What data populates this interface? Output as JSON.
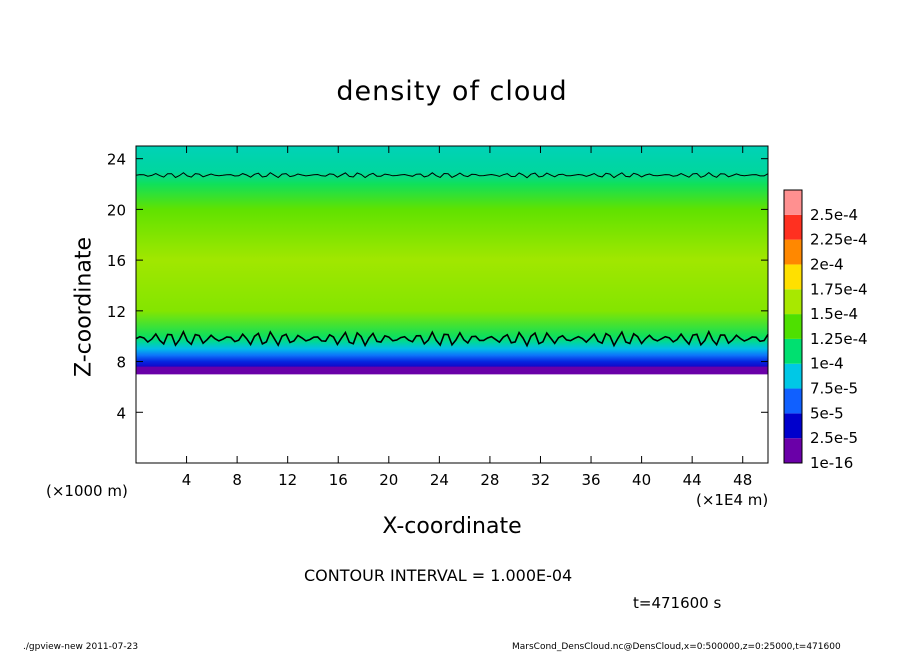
{
  "title": "density of cloud",
  "chart_data": {
    "type": "heatmap",
    "title": "density of cloud",
    "xlabel": "X-coordinate",
    "ylabel": "Z-coordinate",
    "x_unit": "(×1E4 m)",
    "y_unit": "(×1000 m)",
    "xlim": [
      0,
      50
    ],
    "ylim": [
      0,
      25
    ],
    "xticks": [
      "4",
      "8",
      "12",
      "16",
      "20",
      "24",
      "28",
      "32",
      "36",
      "40",
      "44",
      "48"
    ],
    "yticks": [
      "4",
      "8",
      "12",
      "16",
      "20",
      "24"
    ],
    "colorbar_labels": [
      "1e-16",
      "2.5e-5",
      "5e-5",
      "7.5e-5",
      "1e-4",
      "1.25e-4",
      "1.5e-4",
      "1.75e-4",
      "2e-4",
      "2.25e-4",
      "2.5e-4"
    ],
    "colorbar_colors": [
      "#6a00a8",
      "#0000cc",
      "#1060ff",
      "#00c8e6",
      "#00e070",
      "#4ee000",
      "#a8e800",
      "#ffe000",
      "#ff8800",
      "#ff3020",
      "#ff9090"
    ],
    "profile": {
      "z": [
        6.8,
        7.0,
        7.5,
        8.0,
        8.5,
        9.0,
        9.5,
        10.0,
        12.0,
        16.0,
        20.0,
        22.0,
        23.0,
        25.0
      ],
      "density": [
        0,
        2e-06,
        2e-05,
        3.5e-05,
        5.5e-05,
        7.2e-05,
        9e-05,
        0.000105,
        0.00014,
        0.000148,
        0.00013,
        0.000105,
        9e-05,
        8.5e-05
      ]
    },
    "cloud_base_z": 7.0,
    "contour_interval": "1.000E-04",
    "contour_level": 0.0001,
    "contour_lines_z": [
      9.8,
      22.7
    ],
    "annotations": [
      "CONTOUR INTERVAL = 1.000E-04",
      "t=471600 s"
    ]
  },
  "footer_left": "./gpview-new   2011-07-23",
  "footer_right": "MarsCond_DensCloud.nc@DensCloud,x=0:500000,z=0:25000,t=471600"
}
